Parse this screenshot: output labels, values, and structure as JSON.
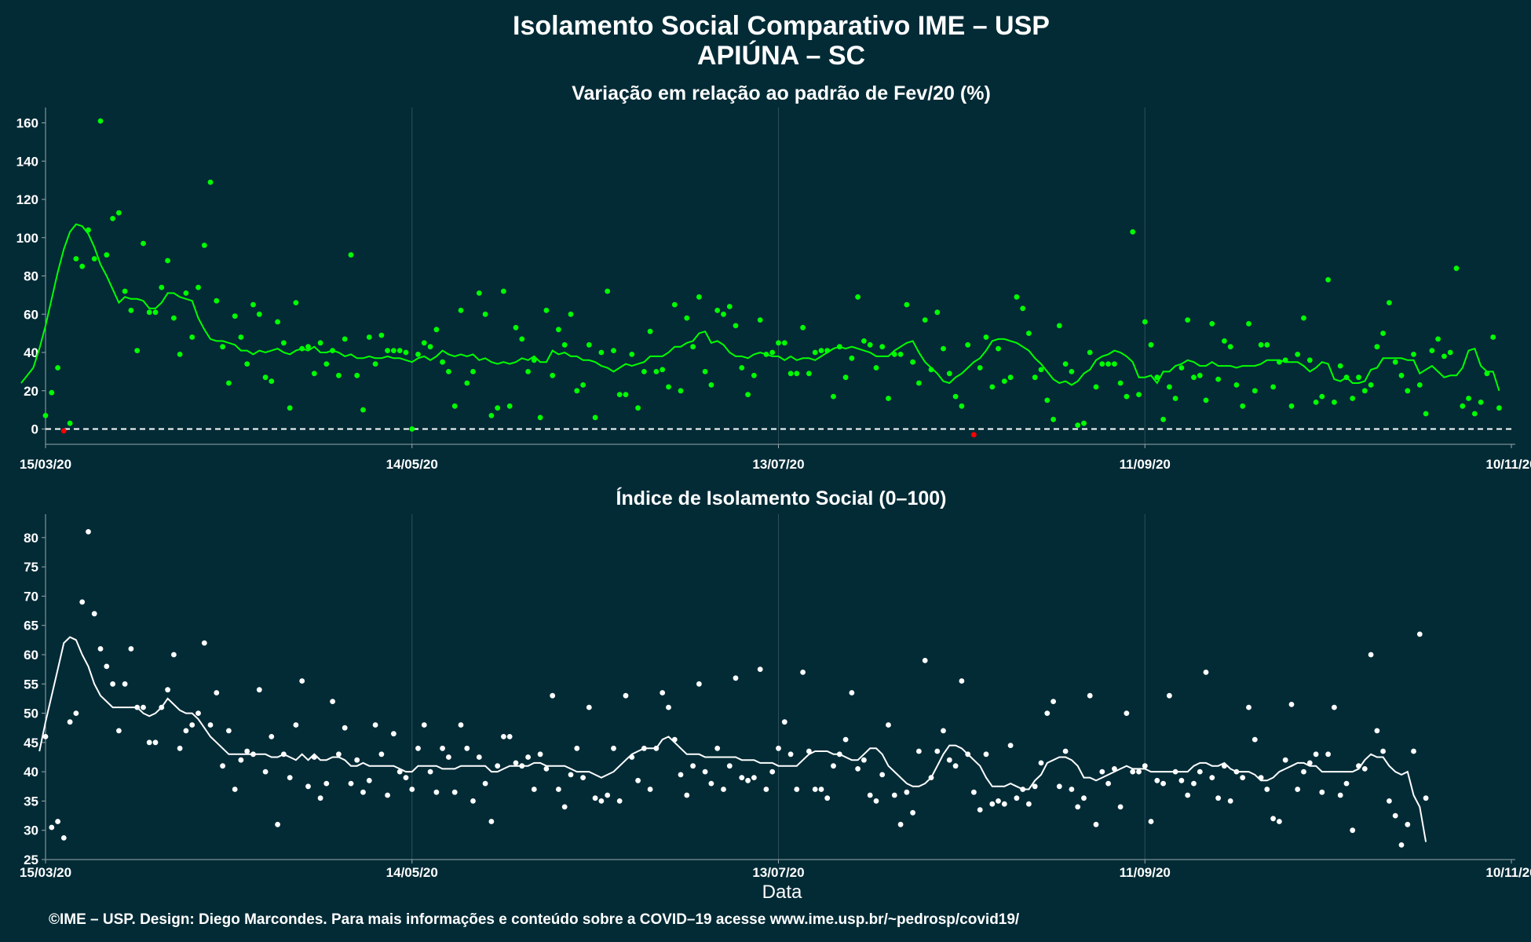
{
  "title_line1": "Isolamento Social Comparativo IME – USP",
  "title_line2": "APIÚNA – SC",
  "footer": "©IME – USP. Design: Diego Marcondes. Para mais informações e conteúdo sobre a COVID–19 acesse www.ime.usp.br/~pedrosp/covid19/",
  "colors": {
    "background": "#022b36",
    "green": "#00ff00",
    "red": "#ff0000",
    "white": "#ffffff"
  },
  "chart_data": [
    {
      "type": "scatter",
      "title": "Variação em relação ao padrão de Fev/20 (%)",
      "xlabel": "",
      "ylabel": "",
      "x_start": "15/03/20",
      "x_end": "10/11/20",
      "x_tick_labels": [
        "15/03/20",
        "14/05/20",
        "13/07/20",
        "11/09/20",
        "10/11/20"
      ],
      "x_tick_days": [
        0,
        60,
        120,
        180,
        240
      ],
      "ylim": [
        -8,
        168
      ],
      "yticks": [
        0,
        20,
        40,
        60,
        80,
        100,
        120,
        140,
        160
      ],
      "reference_line": 0,
      "series": [
        {
          "kind": "points",
          "values": [
            7,
            19,
            32,
            -1,
            3,
            89,
            85,
            104,
            89,
            161,
            91,
            110,
            113,
            72,
            62,
            41,
            97,
            61,
            61,
            74,
            88,
            58,
            39,
            71,
            48,
            74,
            96,
            129,
            67,
            43,
            24,
            59,
            48,
            34,
            65,
            60,
            27,
            25,
            56,
            45,
            11,
            66,
            42,
            43,
            29,
            45,
            34,
            41,
            28,
            47,
            91,
            28,
            10,
            48,
            34,
            49,
            41,
            41,
            41,
            40,
            0,
            39,
            45,
            43,
            52,
            35,
            30,
            12,
            62,
            24,
            30,
            71,
            60,
            7,
            11,
            72,
            12,
            53,
            47,
            30,
            36,
            6,
            62,
            28,
            52,
            44,
            60,
            20,
            23,
            44,
            6,
            40,
            72,
            41,
            18,
            18,
            39,
            11,
            30,
            51,
            30,
            31,
            22,
            65,
            20,
            58,
            43,
            69,
            30,
            23,
            62,
            60,
            64,
            54,
            32,
            18,
            28,
            57,
            39,
            40,
            45,
            45,
            29,
            29,
            53,
            29,
            40,
            41,
            41,
            17,
            43,
            27,
            37,
            69,
            46,
            44,
            32,
            43,
            16,
            39,
            39,
            65,
            35,
            24,
            57,
            31,
            61,
            42,
            29,
            17,
            12,
            44,
            -3,
            32,
            48,
            22,
            42,
            25,
            27,
            69,
            63,
            50,
            27,
            31,
            15,
            5,
            54,
            34,
            30,
            2,
            3,
            40,
            22,
            34,
            34,
            34,
            24,
            17,
            103,
            18,
            56,
            44,
            27,
            5,
            22,
            16,
            32,
            57,
            27,
            28,
            15,
            55,
            26,
            46,
            43,
            23,
            12,
            55,
            20,
            44,
            44,
            22,
            35,
            36,
            12,
            39,
            58,
            36,
            14,
            17,
            78,
            14,
            33,
            27,
            16,
            27,
            20,
            23,
            43,
            50,
            66,
            35,
            28,
            20,
            39,
            23,
            8,
            41,
            47,
            38,
            40,
            84,
            12,
            16,
            8,
            14,
            29,
            48,
            11
          ],
          "below_zero_color": "red"
        },
        {
          "kind": "line",
          "values": [
            24,
            28,
            32,
            42,
            54,
            68,
            82,
            94,
            103,
            107,
            106,
            102,
            95,
            86,
            80,
            73,
            66,
            69,
            68,
            68,
            67,
            63,
            63,
            66,
            71,
            71,
            69,
            68,
            67,
            58,
            52,
            47,
            46,
            46,
            45,
            44,
            41,
            41,
            39,
            41,
            40,
            41,
            42,
            40,
            39,
            41,
            42,
            41,
            43,
            40,
            40,
            41,
            40,
            38,
            39,
            37,
            37,
            38,
            37,
            37,
            38,
            37,
            37,
            36,
            35,
            37,
            38,
            36,
            38,
            41,
            39,
            38,
            39,
            38,
            39,
            36,
            37,
            35,
            34,
            35,
            34,
            35,
            37,
            36,
            38,
            35,
            35,
            41,
            39,
            40,
            38,
            38,
            36,
            36,
            35,
            33,
            32,
            30,
            32,
            34,
            33,
            34,
            35,
            38,
            38,
            38,
            40,
            43,
            43,
            45,
            46,
            50,
            51,
            45,
            46,
            44,
            40,
            38,
            38,
            37,
            39,
            40,
            39,
            38,
            38,
            36,
            38,
            36,
            37,
            37,
            36,
            38,
            40,
            42,
            43,
            42,
            43,
            42,
            41,
            40,
            38,
            38,
            38,
            41,
            43,
            45,
            46,
            40,
            35,
            32,
            29,
            25,
            24,
            27,
            29,
            32,
            35,
            37,
            41,
            46,
            47,
            47,
            46,
            45,
            43,
            41,
            37,
            34,
            30,
            26,
            24,
            25,
            23,
            25,
            29,
            31,
            36,
            38,
            39,
            41,
            40,
            38,
            35,
            27,
            27,
            28,
            24,
            30,
            30,
            33,
            34,
            36,
            35,
            33,
            33,
            35,
            33,
            33,
            33,
            32,
            33,
            33,
            33,
            34,
            36,
            36,
            36,
            35,
            35,
            35,
            33,
            30,
            32,
            35,
            34,
            26,
            25,
            27,
            24,
            24,
            25,
            31,
            32,
            37,
            37,
            37,
            37,
            36,
            36,
            29,
            31,
            33,
            30,
            27,
            28,
            28,
            32,
            41,
            42,
            33,
            30,
            30,
            20
          ]
        }
      ]
    },
    {
      "type": "scatter",
      "title": "Índice de Isolamento Social (0–100)",
      "xlabel": "Data",
      "ylabel": "",
      "x_start": "15/03/20",
      "x_end": "10/11/20",
      "x_tick_labels": [
        "15/03/20",
        "14/05/20",
        "13/07/20",
        "11/09/20",
        "10/11/20"
      ],
      "x_tick_days": [
        0,
        60,
        120,
        180,
        240
      ],
      "ylim": [
        25,
        84
      ],
      "yticks": [
        25,
        30,
        35,
        40,
        45,
        50,
        55,
        60,
        65,
        70,
        75,
        80
      ],
      "series": [
        {
          "kind": "points",
          "values": [
            46,
            30.5,
            31.5,
            28.7,
            48.5,
            50,
            69,
            81,
            67,
            61,
            58,
            55,
            47,
            55,
            61,
            51,
            51,
            45,
            45,
            51,
            54,
            60,
            44,
            47,
            48,
            50,
            62,
            48,
            53.5,
            41,
            47,
            37,
            42,
            43.5,
            43,
            54,
            40,
            46,
            31,
            43,
            39,
            48,
            55.5,
            37.5,
            42.5,
            35.5,
            38,
            52,
            43,
            47.5,
            38,
            42,
            36.5,
            38.5,
            48,
            43,
            36,
            46.5,
            40,
            39,
            37,
            44,
            48,
            40,
            36.5,
            44,
            42.5,
            36.5,
            48,
            44,
            35,
            42.5,
            38,
            31.5,
            41,
            46,
            46,
            41.5,
            41,
            42.5,
            37,
            43,
            40.5,
            53,
            37,
            34,
            39.5,
            44,
            39,
            51,
            35.5,
            35,
            36,
            44,
            35,
            53,
            42.5,
            38.5,
            44,
            37,
            44,
            53.5,
            51,
            45.5,
            39.5,
            36,
            41,
            55,
            40,
            38,
            44,
            37,
            41,
            56,
            39,
            38.5,
            39,
            57.5,
            37,
            40,
            44,
            48.5,
            43,
            37,
            57,
            43.5,
            37,
            37,
            35.5,
            41,
            43,
            45.5,
            53.5,
            40.5,
            42,
            36,
            35,
            39.5,
            48,
            36,
            31,
            36.5,
            33,
            43.5,
            59,
            39,
            43.5,
            47,
            42,
            41,
            55.5,
            43,
            36.5,
            33.5,
            43,
            34.5,
            35,
            34.5,
            44.5,
            35.5,
            37,
            34.5,
            37.5,
            41.5,
            50,
            52,
            37.5,
            43.5,
            37,
            34,
            35.5,
            53,
            31,
            40,
            38,
            40.5,
            34,
            50,
            40,
            40,
            41,
            31.5,
            38.5,
            38,
            53,
            40,
            38.5,
            36,
            38,
            40,
            57,
            39,
            35.5,
            41,
            35,
            40,
            39,
            51,
            45.5,
            39,
            37,
            32,
            31.5,
            42,
            51.5,
            37,
            40,
            41.5,
            43,
            36.5,
            43,
            51,
            36,
            38,
            30,
            41,
            40.5,
            60,
            47,
            43.5,
            35,
            32.5,
            27.5,
            31,
            43.5,
            63.5,
            35.5
          ]
        },
        {
          "kind": "line",
          "values": [
            43.5,
            48.5,
            53,
            57.5,
            62,
            63,
            62.5,
            60,
            58,
            55,
            53,
            52,
            51,
            51,
            51,
            51,
            51,
            50,
            49.5,
            50,
            51,
            52.5,
            51.5,
            50.5,
            50,
            50,
            49,
            47.5,
            46,
            45,
            44,
            43,
            43,
            43,
            43,
            43,
            43,
            43,
            42.5,
            42.5,
            43,
            42.5,
            42,
            43,
            42,
            43,
            42,
            42,
            42.5,
            42.5,
            42,
            41,
            41,
            41.5,
            41,
            41,
            41,
            41,
            41,
            40.5,
            40,
            40,
            41,
            41,
            41,
            41,
            40.5,
            40.5,
            40.5,
            41,
            41,
            41,
            41,
            41,
            40,
            40,
            40.5,
            41,
            41,
            41,
            41,
            41.5,
            41.5,
            41,
            41,
            41,
            41,
            40.5,
            40,
            40,
            40,
            39.5,
            39,
            39.5,
            40,
            41,
            42,
            43,
            43.5,
            44,
            44,
            44,
            45.5,
            46,
            45,
            44,
            43,
            43,
            43,
            42.5,
            42.5,
            42.5,
            42.5,
            42.5,
            42.5,
            42,
            42,
            42,
            41.5,
            41.5,
            41.5,
            41,
            41,
            41,
            41,
            42,
            43,
            43.5,
            43.5,
            43.5,
            43,
            43,
            42.5,
            42,
            42,
            43,
            44,
            44,
            43,
            41,
            40,
            39,
            38,
            37.5,
            37.5,
            38,
            39,
            41,
            43,
            44.5,
            44.5,
            44,
            43,
            42,
            41,
            39,
            37.5,
            37.5,
            37.5,
            38,
            37.5,
            37,
            37,
            38.5,
            39.5,
            41.5,
            42,
            42.5,
            42.5,
            42,
            41,
            39,
            39,
            38.5,
            39,
            39.5,
            40,
            40.5,
            41,
            40.5,
            40.5,
            40.5,
            40,
            40,
            40,
            40,
            40,
            40,
            40,
            41,
            41.5,
            41.5,
            41,
            41,
            41.5,
            40.5,
            40,
            40,
            40,
            39.5,
            38.5,
            38.5,
            39,
            40,
            40.5,
            41,
            41.5,
            41.5,
            41,
            41,
            40,
            40,
            40,
            40,
            40,
            40,
            40.5,
            42,
            43,
            42.5,
            42.5,
            41,
            40,
            39.5,
            40,
            36,
            34,
            28
          ]
        }
      ]
    }
  ]
}
